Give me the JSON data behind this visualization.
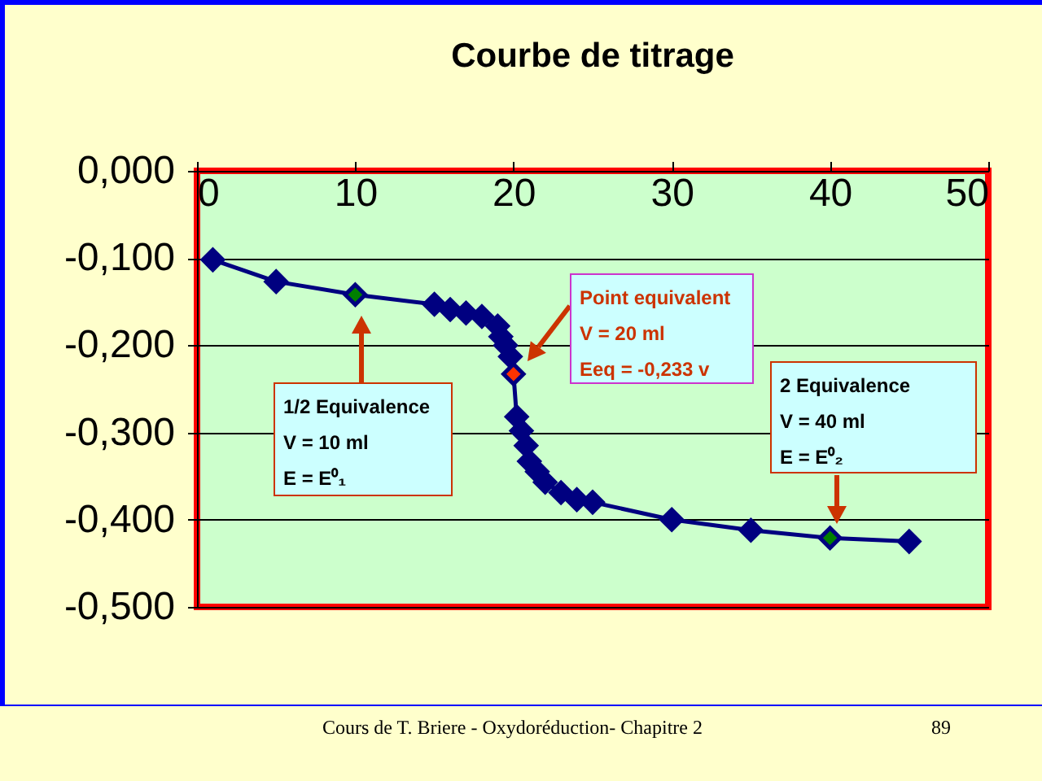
{
  "chart_data": {
    "type": "line",
    "title": "Courbe de titrage",
    "marker": "diamond",
    "grid": "y",
    "xlim": [
      0,
      50
    ],
    "xticks": [
      0,
      10,
      20,
      30,
      40,
      50
    ],
    "ylim": [
      -0.5,
      0
    ],
    "yticks": [
      {
        "value": 0,
        "label": "0,000"
      },
      {
        "value": -0.1,
        "label": "-0,100"
      },
      {
        "value": -0.2,
        "label": "-0,200"
      },
      {
        "value": -0.3,
        "label": "-0,300"
      },
      {
        "value": -0.4,
        "label": "-0,400"
      },
      {
        "value": -0.5,
        "label": "-0,500"
      }
    ],
    "series": [
      {
        "color": "#000080",
        "x": [
          1,
          5,
          10,
          15,
          16,
          17,
          18,
          19,
          19.2,
          19.5,
          19.8,
          20,
          20.2,
          20.5,
          20.8,
          21,
          21.5,
          22,
          23,
          24,
          25,
          30,
          35,
          40,
          45
        ],
        "values": [
          -0.102,
          -0.127,
          -0.142,
          -0.153,
          -0.159,
          -0.163,
          -0.167,
          -0.178,
          -0.19,
          -0.2,
          -0.213,
          -0.233,
          -0.282,
          -0.298,
          -0.315,
          -0.333,
          -0.345,
          -0.357,
          -0.369,
          -0.377,
          -0.38,
          -0.4,
          -0.412,
          -0.421,
          -0.425
        ],
        "colors": [
          "#000080",
          "#000080",
          "#008000",
          "#000080",
          "#000080",
          "#000080",
          "#000080",
          "#000080",
          "#000080",
          "#000080",
          "#000080",
          "#ff3300",
          "#000080",
          "#000080",
          "#000080",
          "#000080",
          "#000080",
          "#000080",
          "#000080",
          "#000080",
          "#000080",
          "#000080",
          "#000080",
          "#008000",
          "#000080"
        ]
      }
    ],
    "annotations": [
      "1/2 Equivalence\nV = 10 ml\nE = E⁰₁",
      "Point equivalent\nV = 20 ml\nEeq = -0,233 v",
      "2 Equivalence\nV = 40 ml\nE = E⁰₂",
      "Cours de T. Briere - Oxydoréduction- Chapitre 2",
      "89"
    ]
  }
}
